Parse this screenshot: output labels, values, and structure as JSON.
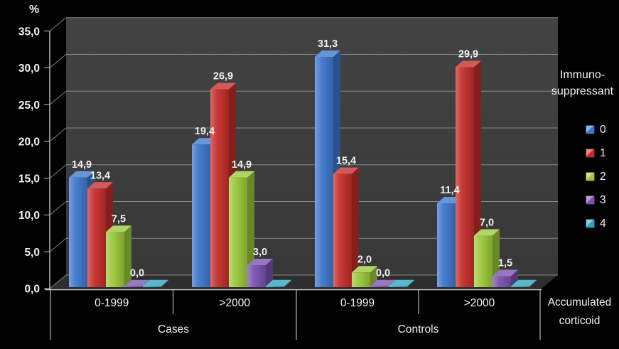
{
  "chart_data": {
    "type": "bar",
    "variant": "3d-clustered-column",
    "title": "",
    "y_axis_unit": "%",
    "y_axis": {
      "min": 0,
      "max": 35,
      "step": 5,
      "tick_labels": [
        "0,0",
        "5,0",
        "10,0",
        "15,0",
        "20,0",
        "25,0",
        "30,0",
        "35,0"
      ]
    },
    "x_axis": {
      "title_lines": [
        "Accumulated",
        "corticoid"
      ],
      "groups": [
        {
          "label": "Cases",
          "categories": [
            "0-1999",
            ">2000"
          ]
        },
        {
          "label": "Controls",
          "categories": [
            "0-1999",
            ">2000"
          ]
        }
      ]
    },
    "categories": [
      "Cases 0-1999",
      "Cases >2000",
      "Controls 0-1999",
      "Controls >2000"
    ],
    "legend": {
      "title_lines": [
        "Immuno-",
        "suppressant"
      ],
      "position": "right",
      "entries": [
        {
          "label": "0",
          "color": "#3d77cd"
        },
        {
          "label": "1",
          "color": "#c42d2a"
        },
        {
          "label": "2",
          "color": "#9cc839"
        },
        {
          "label": "3",
          "color": "#7a52ae"
        },
        {
          "label": "4",
          "color": "#2ba4bf"
        }
      ]
    },
    "series": [
      {
        "name": "0",
        "color": "#3d77cd",
        "values": [
          14.9,
          19.4,
          31.3,
          11.4
        ],
        "labels": [
          "14,9",
          "19,4",
          "31,3",
          "11,4"
        ]
      },
      {
        "name": "1",
        "color": "#c42d2a",
        "values": [
          13.4,
          26.9,
          15.4,
          29.9
        ],
        "labels": [
          "13,4",
          "26,9",
          "15,4",
          "29,9"
        ]
      },
      {
        "name": "2",
        "color": "#9cc839",
        "values": [
          7.5,
          14.9,
          2.0,
          7.0
        ],
        "labels": [
          "7,5",
          "14,9",
          "2,0",
          "7,0"
        ]
      },
      {
        "name": "3",
        "color": "#7a52ae",
        "values": [
          0.0,
          3.0,
          0.0,
          1.5
        ],
        "labels": [
          "0,0",
          "3,0",
          "0,0",
          "1,5"
        ]
      },
      {
        "name": "4",
        "color": "#2ba4bf",
        "values": [
          0.0,
          0.0,
          0.0,
          0.0
        ],
        "labels": [
          "",
          "",
          "",
          ""
        ]
      }
    ],
    "colors": {
      "background": "#000000",
      "plot_wall": "#3b3b3b",
      "plot_floor": "#2e2e2e",
      "gridline": "#909090",
      "axis": "#cfcfcf",
      "text": "#f2f2f2"
    },
    "grid": true
  }
}
